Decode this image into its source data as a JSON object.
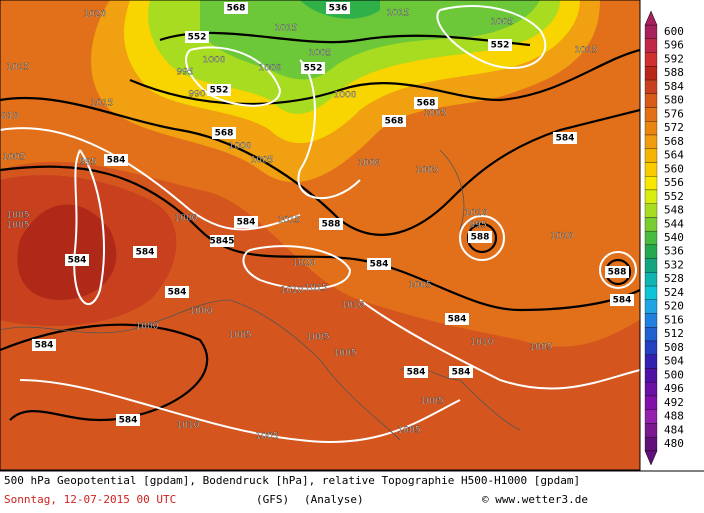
{
  "map": {
    "contour_labels": [
      "568",
      "536",
      "1020",
      "1015",
      "1015",
      "1005",
      "552",
      "552",
      "1015",
      "1000",
      "995",
      "552",
      "1000",
      "1005",
      "990",
      "552",
      "1000",
      "1015",
      "568",
      "010",
      "568",
      "568",
      "1005",
      "1015",
      "584",
      "995",
      "1005",
      "584",
      "1005",
      "1000",
      "1000",
      "1005",
      "1005",
      "1005",
      "1000",
      "584",
      "1015",
      "588",
      "1010",
      "995",
      "588",
      "1010",
      "584",
      "584",
      "5845",
      "1020",
      "584",
      "1010",
      "1015",
      "588",
      "584",
      "584",
      "1010",
      "1005",
      "1000",
      "1000",
      "584",
      "1005",
      "1010",
      "1005",
      "1005",
      "584",
      "1005",
      "584",
      "584",
      "1005",
      "584",
      "1010",
      "1005",
      "1005"
    ]
  },
  "colorbar": {
    "levels": [
      "600",
      "596",
      "592",
      "588",
      "584",
      "580",
      "576",
      "572",
      "568",
      "564",
      "560",
      "556",
      "552",
      "548",
      "544",
      "540",
      "536",
      "532",
      "528",
      "524",
      "520",
      "516",
      "512",
      "508",
      "504",
      "500",
      "496",
      "492",
      "488",
      "484",
      "480"
    ],
    "colors": [
      "#a8205c",
      "#c02848",
      "#d03030",
      "#b82818",
      "#c84020",
      "#d85a18",
      "#e27014",
      "#ea8610",
      "#f09c10",
      "#f4b404",
      "#f8cc00",
      "#f8e800",
      "#d8ec10",
      "#a8dc20",
      "#78cc30",
      "#48bc40",
      "#24a850",
      "#14a480",
      "#10b4b0",
      "#10c4d8",
      "#20a4e4",
      "#2080e0",
      "#2060d0",
      "#2440c0",
      "#3420b0",
      "#5010a4",
      "#6a10a4",
      "#8210a8",
      "#9420b0",
      "#7a1890",
      "#601078"
    ]
  },
  "footer": {
    "description": "500 hPa Geopotential [gpdam], Bodendruck [hPa], relative Topographie H500-H1000 [gpdam]",
    "date": "Sonntag, 12-07-2015  00 UTC",
    "model": "(GFS)",
    "run": "(Analyse)",
    "copyright": "© www.wetter3.de"
  }
}
